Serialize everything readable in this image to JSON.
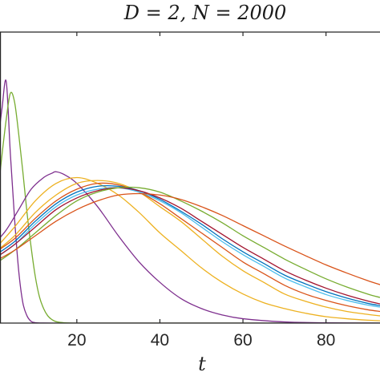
{
  "chart_data": {
    "type": "line",
    "title": "D = 2, N = 2000",
    "xlabel": "t",
    "ylabel": "",
    "xlim": [
      1.5,
      93
    ],
    "ylim": [
      0,
      1.0
    ],
    "xticks": [
      20,
      40,
      60,
      80
    ],
    "xtick_labels": [
      "20",
      "40",
      "60",
      "80"
    ],
    "grid": false,
    "legend": "none",
    "series": [
      {
        "color": "#7E2F8E",
        "x": [
          0,
          1,
          2,
          3,
          4,
          5,
          6,
          7,
          8,
          9,
          10,
          12,
          15,
          20,
          30,
          50,
          93
        ],
        "y": [
          0.5,
          0.62,
          0.74,
          0.83,
          0.58,
          0.36,
          0.18,
          0.07,
          0.025,
          0.006,
          0.0015,
          0.0002,
          0,
          0,
          0,
          0,
          0
        ]
      },
      {
        "color": "#77AC30",
        "x": [
          0,
          1,
          2,
          3,
          4,
          5,
          6,
          7,
          8,
          9,
          10,
          11,
          12,
          13,
          14,
          15,
          17,
          20,
          30,
          50,
          93
        ],
        "y": [
          0.35,
          0.45,
          0.58,
          0.7,
          0.79,
          0.76,
          0.65,
          0.52,
          0.38,
          0.26,
          0.16,
          0.09,
          0.05,
          0.025,
          0.012,
          0.005,
          0.001,
          0,
          0,
          0,
          0
        ]
      },
      {
        "color": "#7E2F8E",
        "x": [
          0,
          3,
          6,
          9,
          12,
          14,
          15,
          17,
          20,
          25,
          30,
          35,
          40,
          45,
          50,
          55,
          60,
          70,
          80,
          93
        ],
        "y": [
          0.27,
          0.32,
          0.39,
          0.46,
          0.5,
          0.515,
          0.52,
          0.51,
          0.48,
          0.4,
          0.3,
          0.21,
          0.14,
          0.085,
          0.05,
          0.028,
          0.015,
          0.004,
          0.001,
          0
        ]
      },
      {
        "color": "#EDB120",
        "x": [
          0,
          5,
          10,
          15,
          20,
          25,
          30,
          35,
          40,
          45,
          50,
          55,
          60,
          65,
          70,
          75,
          80,
          85,
          90,
          93
        ],
        "y": [
          0.25,
          0.33,
          0.42,
          0.48,
          0.5,
          0.48,
          0.44,
          0.38,
          0.31,
          0.25,
          0.19,
          0.14,
          0.1,
          0.07,
          0.05,
          0.034,
          0.022,
          0.015,
          0.01,
          0.008
        ]
      },
      {
        "color": "#EDB120",
        "x": [
          0,
          5,
          10,
          15,
          20,
          25,
          30,
          35,
          40,
          45,
          50,
          55,
          60,
          65,
          70,
          75,
          80,
          85,
          90,
          93
        ],
        "y": [
          0.24,
          0.3,
          0.38,
          0.44,
          0.48,
          0.49,
          0.48,
          0.45,
          0.4,
          0.35,
          0.29,
          0.23,
          0.18,
          0.14,
          0.1,
          0.075,
          0.055,
          0.04,
          0.03,
          0.025
        ]
      },
      {
        "color": "#D95319",
        "x": [
          0,
          5,
          10,
          15,
          20,
          25,
          30,
          35,
          40,
          45,
          50,
          55,
          60,
          65,
          70,
          75,
          80,
          85,
          90,
          93
        ],
        "y": [
          0.24,
          0.29,
          0.36,
          0.42,
          0.46,
          0.48,
          0.475,
          0.45,
          0.41,
          0.36,
          0.31,
          0.26,
          0.21,
          0.17,
          0.13,
          0.1,
          0.078,
          0.06,
          0.046,
          0.04
        ]
      },
      {
        "color": "#4DBEEE",
        "x": [
          0,
          5,
          10,
          15,
          20,
          25,
          30,
          35,
          40,
          45,
          50,
          55,
          60,
          65,
          70,
          75,
          80,
          85,
          90,
          93
        ],
        "y": [
          0.22,
          0.27,
          0.34,
          0.4,
          0.44,
          0.46,
          0.465,
          0.45,
          0.42,
          0.38,
          0.33,
          0.28,
          0.235,
          0.195,
          0.155,
          0.125,
          0.098,
          0.078,
          0.062,
          0.055
        ]
      },
      {
        "color": "#0072BD",
        "x": [
          0,
          5,
          10,
          15,
          20,
          25,
          30,
          35,
          40,
          45,
          50,
          55,
          60,
          65,
          70,
          75,
          80,
          85,
          90,
          93
        ],
        "y": [
          0.23,
          0.28,
          0.35,
          0.41,
          0.45,
          0.47,
          0.47,
          0.455,
          0.425,
          0.385,
          0.34,
          0.29,
          0.245,
          0.205,
          0.165,
          0.135,
          0.108,
          0.086,
          0.068,
          0.06
        ]
      },
      {
        "color": "#A2142F",
        "x": [
          0,
          5,
          10,
          15,
          20,
          25,
          30,
          35,
          40,
          45,
          50,
          55,
          60,
          65,
          70,
          75,
          80,
          85,
          90,
          93
        ],
        "y": [
          0.22,
          0.27,
          0.33,
          0.39,
          0.43,
          0.455,
          0.465,
          0.455,
          0.43,
          0.395,
          0.35,
          0.305,
          0.26,
          0.22,
          0.18,
          0.148,
          0.12,
          0.096,
          0.076,
          0.066
        ]
      },
      {
        "color": "#77AC30",
        "x": [
          0,
          5,
          10,
          15,
          20,
          25,
          30,
          35,
          40,
          45,
          50,
          55,
          60,
          65,
          70,
          75,
          80,
          85,
          90,
          93
        ],
        "y": [
          0.2,
          0.25,
          0.31,
          0.37,
          0.42,
          0.45,
          0.465,
          0.465,
          0.45,
          0.42,
          0.385,
          0.345,
          0.3,
          0.26,
          0.22,
          0.185,
          0.152,
          0.124,
          0.1,
          0.088
        ]
      },
      {
        "color": "#D95319",
        "x": [
          0,
          5,
          10,
          15,
          20,
          25,
          30,
          35,
          40,
          45,
          50,
          55,
          60,
          65,
          70,
          75,
          80,
          85,
          90,
          93
        ],
        "y": [
          0.21,
          0.25,
          0.3,
          0.35,
          0.39,
          0.42,
          0.44,
          0.445,
          0.44,
          0.425,
          0.4,
          0.37,
          0.335,
          0.3,
          0.265,
          0.232,
          0.2,
          0.172,
          0.146,
          0.132
        ]
      }
    ]
  }
}
